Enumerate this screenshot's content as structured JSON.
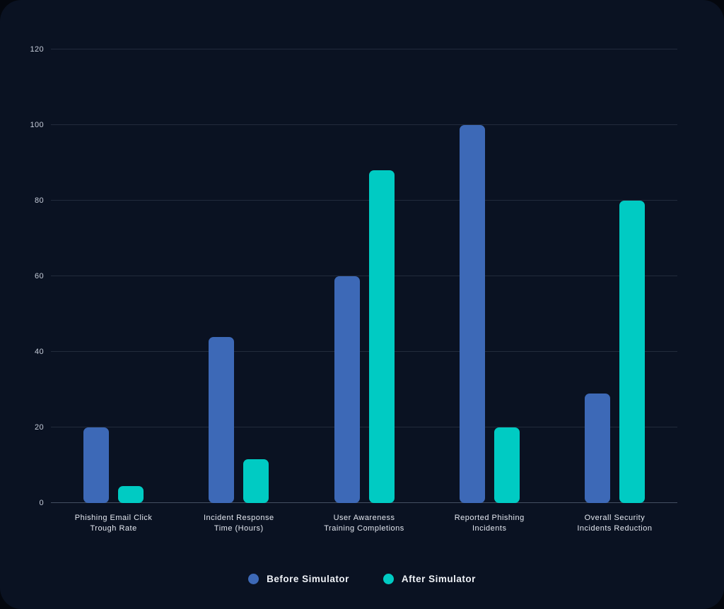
{
  "colors": {
    "page_background": "#04070e",
    "card_background": "#0a1222",
    "gridline": "rgba(160,175,200,0.16)",
    "axis_baseline": "rgba(160,175,200,0.38)",
    "tick_label": "#c6cdda",
    "category_label": "#e4e8f0",
    "legend_label": "#eef1f6",
    "series_before": "#3d69b7",
    "series_after": "#00cbc3"
  },
  "chart_data": {
    "type": "bar",
    "title": "",
    "xlabel": "",
    "ylabel": "",
    "ylim": [
      0,
      120
    ],
    "yticks": [
      0,
      20,
      40,
      60,
      80,
      100,
      120
    ],
    "grid": true,
    "legend_position": "bottom",
    "categories": [
      "Phishing Email Click\nTrough Rate",
      "Incident Response\nTime (Hours)",
      "User Awareness\nTraining Completions",
      "Reported Phishing\nIncidents",
      "Overall Security\nIncidents Reduction"
    ],
    "series": [
      {
        "name": "Before Simulator",
        "color": "#3d69b7",
        "values": [
          20,
          44,
          60,
          100,
          29
        ]
      },
      {
        "name": "After Simulator",
        "color": "#00cbc3",
        "values": [
          4.5,
          11.5,
          88,
          20,
          80
        ]
      }
    ]
  }
}
